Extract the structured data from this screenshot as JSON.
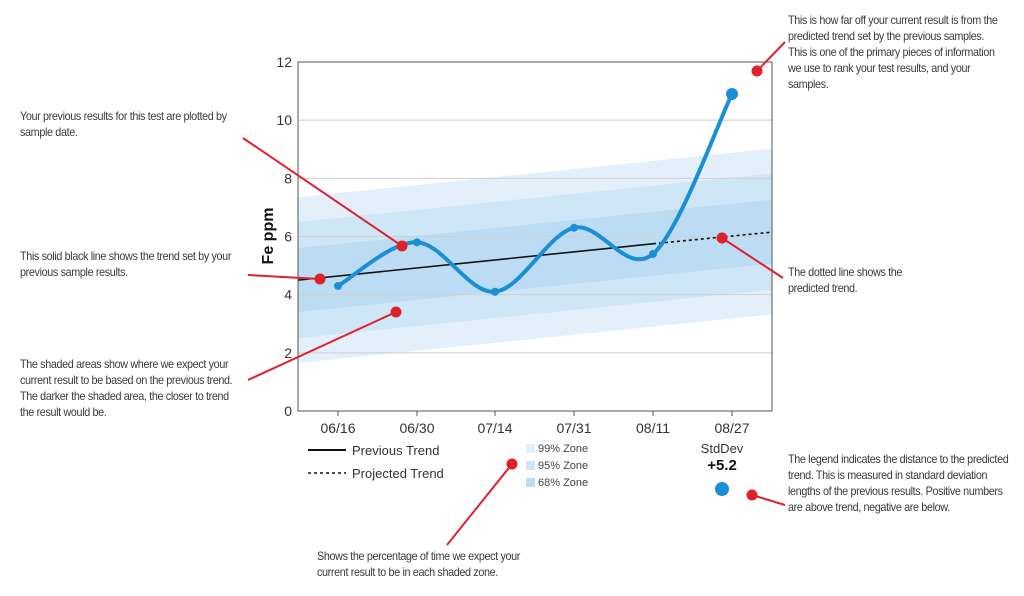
{
  "chart_data": {
    "type": "line",
    "ylabel": "Fe ppm",
    "ylim": [
      0,
      12
    ],
    "yticks": [
      "0",
      "2",
      "4",
      "6",
      "8",
      "10",
      "12"
    ],
    "categories": [
      "06/16",
      "06/30",
      "07/14",
      "07/31",
      "08/11",
      "08/27"
    ],
    "values": [
      4.3,
      5.8,
      4.1,
      6.3,
      5.4,
      10.9
    ],
    "grid": true,
    "previous_trend": {
      "start": 4.5,
      "end_at_08_11": 5.75
    },
    "projected_trend": {
      "end": 6.15
    },
    "zones": [
      {
        "label": "99% Zone",
        "halfwidth": 2.85,
        "color": "#e3f0fb"
      },
      {
        "label": "95% Zone",
        "halfwidth": 2.0,
        "color": "#cfe6f7"
      },
      {
        "label": "68% Zone",
        "halfwidth": 1.1,
        "color": "#bcdcf3"
      }
    ],
    "legend": {
      "previous": "Previous Trend",
      "projected": "Projected Trend"
    },
    "stddev": {
      "label": "StdDev",
      "value": "+5.2"
    },
    "colors": {
      "series": "#1a8fd6",
      "trend": "#111111",
      "callout": "#e0202a"
    }
  },
  "notes": {
    "plotted": "Your previous results for this test are plotted by sample date.",
    "solid_line": "This solid black line shows the trend set by your previous sample results.",
    "shaded": "The shaded areas show where we expect your current result to be based on the previous trend. The darker the shaded area, the closer to trend the result would be.",
    "how_far": "This is how far off your current result is from the predicted trend set by the previous samples. This is one of the primary pieces of information we use to rank your test results, and your samples.",
    "dotted": "The dotted line shows the predicted trend.",
    "percentage": "Shows the percentage of time we expect your current result to be in each shaded zone.",
    "legend": "The legend indicates the distance to the predicted trend. This is measured in standard deviation lengths of the previous results. Positive numbers are above trend, negative are below."
  }
}
